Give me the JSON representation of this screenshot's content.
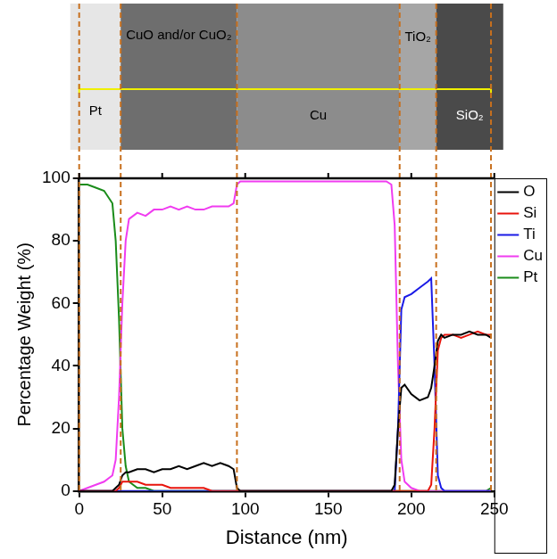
{
  "chart_data": {
    "type": "line",
    "x_label": "Distance (nm)",
    "y_label": "Percentage Weight (%)",
    "x": [
      0,
      5,
      10,
      15,
      20,
      22,
      24,
      26,
      28,
      30,
      35,
      40,
      45,
      50,
      55,
      60,
      65,
      70,
      75,
      80,
      85,
      90,
      93,
      95,
      97,
      100,
      110,
      120,
      130,
      140,
      150,
      160,
      170,
      180,
      185,
      188,
      190,
      192,
      194,
      196,
      200,
      205,
      210,
      212,
      214,
      216,
      218,
      220,
      225,
      230,
      235,
      240,
      245,
      248
    ],
    "series": [
      {
        "name": "O",
        "color": "#000000",
        "values": [
          0,
          0,
          0,
          0,
          0,
          1,
          2,
          5,
          6,
          6,
          7,
          7,
          6,
          7,
          7,
          8,
          7,
          8,
          9,
          8,
          9,
          8,
          7,
          1,
          0,
          0,
          0,
          0,
          0,
          0,
          0,
          0,
          0,
          0,
          0,
          0,
          2,
          20,
          33,
          34,
          31,
          29,
          30,
          33,
          40,
          48,
          50,
          49,
          50,
          50,
          51,
          50,
          50,
          49
        ]
      },
      {
        "name": "Si",
        "color": "#e8140c",
        "values": [
          0,
          0,
          0,
          0,
          0,
          0,
          1,
          3,
          3,
          3,
          3,
          2,
          2,
          2,
          1,
          1,
          1,
          1,
          1,
          0,
          0,
          0,
          0,
          0,
          0,
          0,
          0,
          0,
          0,
          0,
          0,
          0,
          0,
          0,
          0,
          0,
          0,
          0,
          0,
          0,
          0,
          0,
          0,
          2,
          20,
          45,
          49,
          50,
          50,
          49,
          50,
          51,
          50,
          50
        ]
      },
      {
        "name": "Ti",
        "color": "#1a1ae6",
        "values": [
          0,
          0,
          0,
          0,
          0,
          0,
          0,
          0,
          0,
          0,
          0,
          0,
          0,
          0,
          0,
          0,
          0,
          0,
          0,
          0,
          0,
          0,
          0,
          0,
          0,
          0,
          0,
          0,
          0,
          0,
          0,
          0,
          0,
          0,
          0,
          0,
          0,
          20,
          58,
          62,
          63,
          65,
          67,
          68,
          40,
          5,
          1,
          0,
          0,
          0,
          0,
          0,
          0,
          0
        ]
      },
      {
        "name": "Cu",
        "color": "#f03cf0",
        "values": [
          0,
          1,
          2,
          3,
          5,
          10,
          30,
          60,
          80,
          87,
          89,
          88,
          90,
          90,
          91,
          90,
          91,
          90,
          90,
          91,
          91,
          91,
          92,
          98,
          99,
          99,
          99,
          99,
          99,
          99,
          99,
          99,
          99,
          99,
          99,
          98,
          85,
          40,
          10,
          3,
          1,
          0,
          0,
          0,
          0,
          0,
          0,
          0,
          0,
          0,
          0,
          0,
          0,
          0
        ]
      },
      {
        "name": "Pt",
        "color": "#1a8c1a",
        "values": [
          98,
          98,
          97,
          96,
          92,
          80,
          55,
          20,
          8,
          3,
          1,
          1,
          0,
          0,
          0,
          0,
          0,
          0,
          0,
          0,
          0,
          0,
          0,
          0,
          0,
          0,
          0,
          0,
          0,
          0,
          0,
          0,
          0,
          0,
          0,
          0,
          0,
          0,
          0,
          0,
          0,
          0,
          0,
          0,
          0,
          0,
          0,
          0,
          0,
          0,
          0,
          0,
          0,
          1
        ]
      }
    ],
    "xlim": [
      0,
      250
    ],
    "xticks": [
      0,
      50,
      100,
      150,
      200,
      250
    ],
    "ylim": [
      0,
      100
    ],
    "yticks": [
      0,
      20,
      40,
      60,
      80,
      100
    ],
    "grid": false,
    "legend": "right"
  },
  "micrograph": {
    "boundaries": [
      0,
      25,
      95,
      193,
      215,
      248
    ],
    "layers": [
      "Pt",
      "CuO and/or CuO₂",
      "Cu",
      "TiO₂",
      "SiO₂"
    ]
  }
}
